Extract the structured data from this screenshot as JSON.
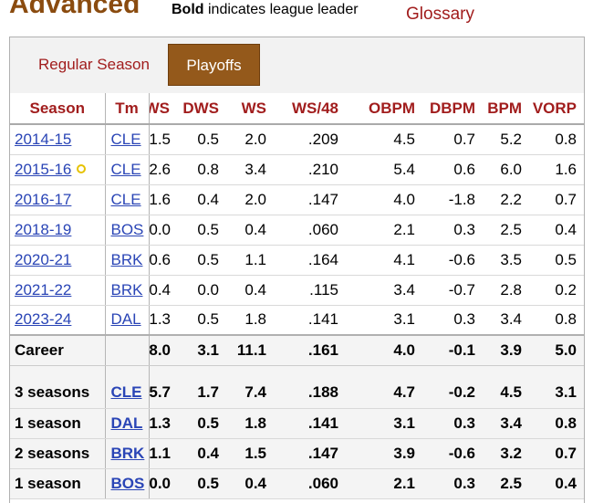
{
  "header": {
    "title": "Advanced",
    "note_bold": "Bold",
    "note_rest": " indicates league leader",
    "glossary": "Glossary"
  },
  "tabs": [
    {
      "label": "Regular Season",
      "active": false
    },
    {
      "label": "Playoffs",
      "active": true
    }
  ],
  "table": {
    "columns": [
      "Season",
      "Tm",
      "WS",
      "DWS",
      "WS",
      "WS/48",
      "",
      "OBPM",
      "DBPM",
      "BPM",
      "VORP"
    ],
    "rows": [
      {
        "season": "2014-15",
        "team": "CLE",
        "ows": "1.5",
        "dws": "0.5",
        "ws": "2.0",
        "ws48": ".209",
        "obpm": "4.5",
        "dbpm": "0.7",
        "bpm": "5.2",
        "vorp": "0.8"
      },
      {
        "season": "2015-16",
        "team": "CLE",
        "champion": true,
        "ows": "2.6",
        "dws": "0.8",
        "ws": "3.4",
        "ws48": ".210",
        "obpm": "5.4",
        "dbpm": "0.6",
        "bpm": "6.0",
        "vorp": "1.6"
      },
      {
        "season": "2016-17",
        "team": "CLE",
        "ows": "1.6",
        "dws": "0.4",
        "ws": "2.0",
        "ws48": ".147",
        "obpm": "4.0",
        "dbpm": "-1.8",
        "bpm": "2.2",
        "vorp": "0.7"
      },
      {
        "season": "2018-19",
        "team": "BOS",
        "ows": "0.0",
        "dws": "0.5",
        "ws": "0.4",
        "ws48": ".060",
        "obpm": "2.1",
        "dbpm": "0.3",
        "bpm": "2.5",
        "vorp": "0.4"
      },
      {
        "season": "2020-21",
        "team": "BRK",
        "ows": "0.6",
        "dws": "0.5",
        "ws": "1.1",
        "ws48": ".164",
        "obpm": "4.1",
        "dbpm": "-0.6",
        "bpm": "3.5",
        "vorp": "0.5"
      },
      {
        "season": "2021-22",
        "team": "BRK",
        "ows": "0.4",
        "dws": "0.0",
        "ws": "0.4",
        "ws48": ".115",
        "obpm": "3.4",
        "dbpm": "-0.7",
        "bpm": "2.8",
        "vorp": "0.2"
      },
      {
        "season": "2023-24",
        "team": "DAL",
        "ows": "1.3",
        "dws": "0.5",
        "ws": "1.8",
        "ws48": ".141",
        "obpm": "3.1",
        "dbpm": "0.3",
        "bpm": "3.4",
        "vorp": "0.8"
      }
    ],
    "career": {
      "label": "Career",
      "ows": "8.0",
      "dws": "3.1",
      "ws": "11.1",
      "ws48": ".161",
      "obpm": "4.0",
      "dbpm": "-0.1",
      "bpm": "3.9",
      "vorp": "5.0"
    },
    "team_totals": [
      {
        "label": "3 seasons",
        "team": "CLE",
        "ows": "5.7",
        "dws": "1.7",
        "ws": "7.4",
        "ws48": ".188",
        "obpm": "4.7",
        "dbpm": "-0.2",
        "bpm": "4.5",
        "vorp": "3.1"
      },
      {
        "label": "1 season",
        "team": "DAL",
        "ows": "1.3",
        "dws": "0.5",
        "ws": "1.8",
        "ws48": ".141",
        "obpm": "3.1",
        "dbpm": "0.3",
        "bpm": "3.4",
        "vorp": "0.8"
      },
      {
        "label": "2 seasons",
        "team": "BRK",
        "ows": "1.1",
        "dws": "0.4",
        "ws": "1.5",
        "ws48": ".147",
        "obpm": "3.9",
        "dbpm": "-0.6",
        "bpm": "3.2",
        "vorp": "0.7"
      },
      {
        "label": "1 season",
        "team": "BOS",
        "ows": "0.0",
        "dws": "0.5",
        "ws": "0.4",
        "ws48": ".060",
        "obpm": "2.1",
        "dbpm": "0.3",
        "bpm": "2.5",
        "vorp": "0.4"
      }
    ]
  },
  "colors": {
    "brand": "#8a4b0f",
    "accent_red": "#a11d1d",
    "link_blue": "#2a45b6",
    "tab_active": "#94591b",
    "champion_icon": "#e6c200"
  }
}
